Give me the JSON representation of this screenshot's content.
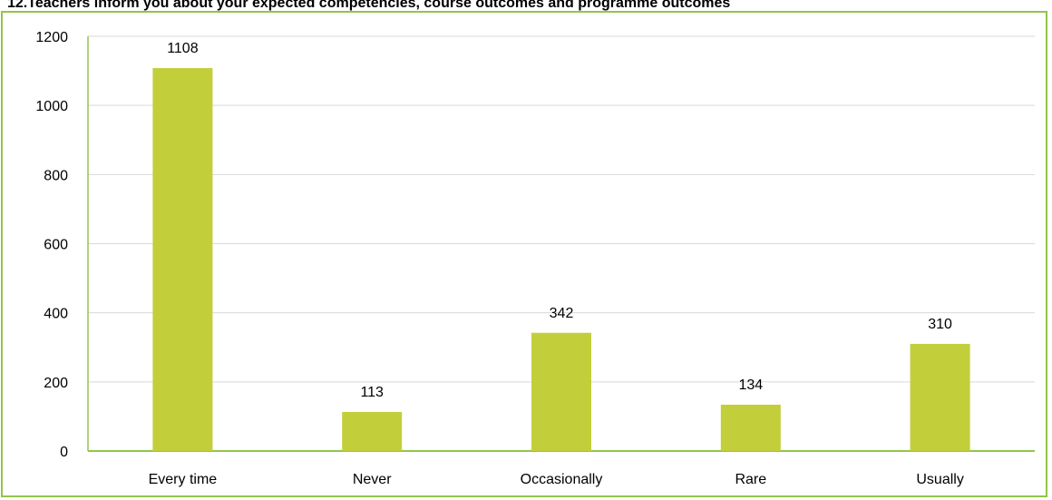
{
  "chart_data": {
    "type": "bar",
    "title": "12.Teachers inform you about your expected competencies, course outcomes and programme outcomes",
    "categories": [
      "Every time",
      "Never",
      "Occasionally",
      "Rare",
      "Usually"
    ],
    "values": [
      1108,
      113,
      342,
      134,
      310
    ],
    "data_labels": [
      "1108",
      "113",
      "342",
      "134",
      "310"
    ],
    "xlabel": "",
    "ylabel": "",
    "ylim": [
      0,
      1200
    ],
    "yticks": [
      0,
      200,
      400,
      600,
      800,
      1000,
      1200
    ],
    "ytick_labels": [
      "0",
      "200",
      "400",
      "600",
      "800",
      "1000",
      "1200"
    ],
    "grid": "horizontal",
    "legend": "none",
    "colors": {
      "bar": "#c2cf3b",
      "frame": "#92c54a",
      "axis": "#92c54a",
      "grid": "#d9d9d9"
    }
  }
}
